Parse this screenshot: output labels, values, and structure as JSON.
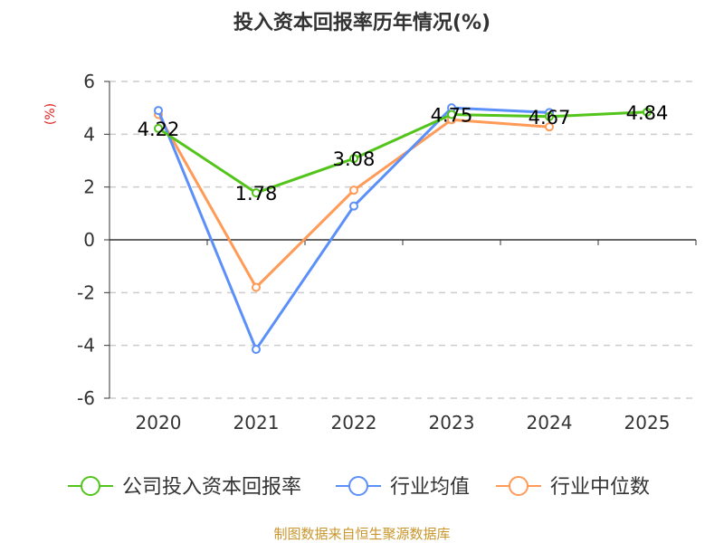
{
  "chart_data": {
    "type": "line",
    "title": "投入资本回报率历年情况(%)",
    "ylabel": "(%)",
    "xlabel": "",
    "categories": [
      "2020",
      "2021",
      "2022",
      "2023",
      "2024",
      "2025"
    ],
    "ylim": [
      -6,
      6
    ],
    "yticks": [
      6,
      4,
      2,
      0,
      -2,
      -4,
      -6
    ],
    "grid": true,
    "legend_position": "bottom",
    "series": [
      {
        "name": "公司投入资本回报率",
        "color": "#52c41a",
        "values": [
          4.22,
          1.78,
          3.08,
          4.75,
          4.67,
          4.84
        ],
        "labels": [
          "4.22",
          "1.78",
          "3.08",
          "4.75",
          "4.67",
          "4.84"
        ]
      },
      {
        "name": "行业均值",
        "color": "#5b8ff9",
        "values": [
          4.9,
          -4.15,
          1.28,
          5.0,
          4.82,
          null
        ]
      },
      {
        "name": "行业中位数",
        "color": "#ff9a57",
        "values": [
          4.75,
          -1.8,
          1.88,
          4.55,
          4.28,
          null
        ]
      }
    ]
  },
  "source": "制图数据来自恒生聚源数据库"
}
